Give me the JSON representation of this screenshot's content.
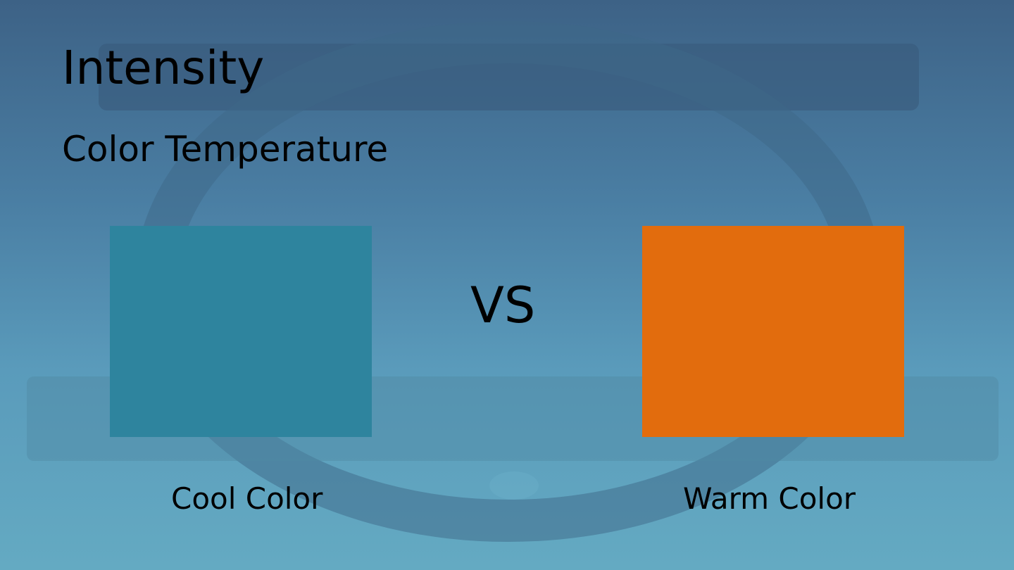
{
  "slide": {
    "title": "Intensity",
    "subtitle": "Color Temperature",
    "left": {
      "label": "Cool Color"
    },
    "middle": "VS",
    "right": {
      "label": "Warm Color"
    }
  }
}
